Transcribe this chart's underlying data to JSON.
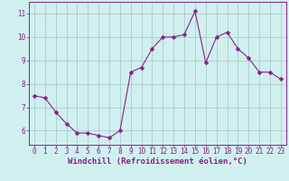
{
  "x": [
    0,
    1,
    2,
    3,
    4,
    5,
    6,
    7,
    8,
    9,
    10,
    11,
    12,
    13,
    14,
    15,
    16,
    17,
    18,
    19,
    20,
    21,
    22,
    23
  ],
  "y": [
    7.5,
    7.4,
    6.8,
    6.3,
    5.9,
    5.9,
    5.8,
    5.7,
    6.0,
    8.5,
    8.7,
    9.5,
    10.0,
    10.0,
    10.1,
    11.1,
    8.9,
    10.0,
    10.2,
    9.5,
    9.1,
    8.5,
    8.5,
    8.2
  ],
  "line_color": "#882288",
  "marker_color": "#882288",
  "bg_color": "#d0f0f0",
  "grid_color": "#aacccc",
  "xlabel": "Windchill (Refroidissement éolien,°C)",
  "tick_color": "#882288",
  "xlabel_color": "#882288",
  "ylim": [
    5.4,
    11.5
  ],
  "xlim": [
    -0.5,
    23.5
  ],
  "yticks": [
    6,
    7,
    8,
    9,
    10,
    11
  ],
  "xticks": [
    0,
    1,
    2,
    3,
    4,
    5,
    6,
    7,
    8,
    9,
    10,
    11,
    12,
    13,
    14,
    15,
    16,
    17,
    18,
    19,
    20,
    21,
    22,
    23
  ],
  "tick_fontsize": 5.5,
  "xlabel_fontsize": 6.5,
  "line_width": 0.8,
  "marker_size": 2.5
}
